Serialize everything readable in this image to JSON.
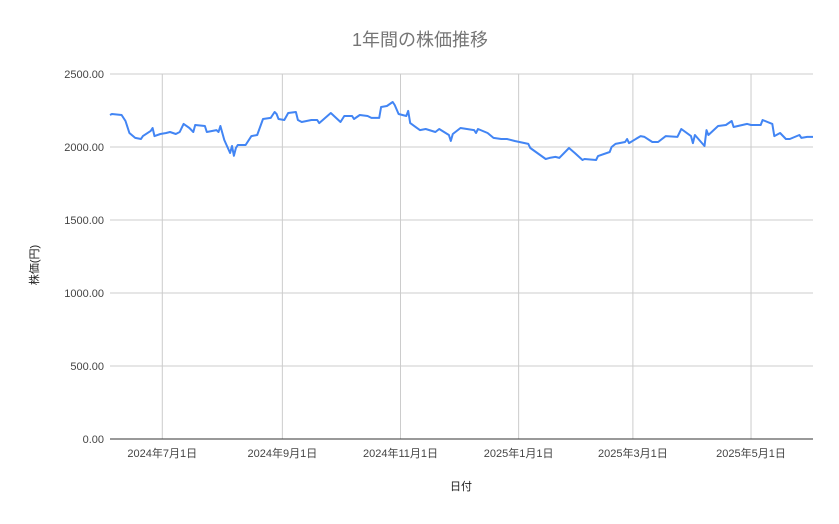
{
  "chart_data": {
    "type": "line",
    "title": "1年間の株価推移",
    "xlabel": "日付",
    "ylabel": "株価(円)",
    "xlim": [
      "2024-06-04",
      "2025-06-02"
    ],
    "ylim": [
      0,
      2500
    ],
    "grid": true,
    "line_color": "#4285f4",
    "y_ticks": [
      {
        "value": 0,
        "label": "0.00"
      },
      {
        "value": 500,
        "label": "500.00"
      },
      {
        "value": 1000,
        "label": "1000.00"
      },
      {
        "value": 1500,
        "label": "1500.00"
      },
      {
        "value": 2000,
        "label": "2000.00"
      },
      {
        "value": 2500,
        "label": "2500.00"
      }
    ],
    "x_ticks": [
      {
        "value": "2024-07-01",
        "label": "2024年7月1日"
      },
      {
        "value": "2024-09-01",
        "label": "2024年9月1日"
      },
      {
        "value": "2024-11-01",
        "label": "2024年11月1日"
      },
      {
        "value": "2025-01-01",
        "label": "2025年1月1日"
      },
      {
        "value": "2025-03-01",
        "label": "2025年3月1日"
      },
      {
        "value": "2025-05-01",
        "label": "2025年5月1日"
      }
    ],
    "series": [
      {
        "points": [
          [
            "2024-06-04",
            2219
          ],
          [
            "2024-06-05",
            2226
          ],
          [
            "2024-06-10",
            2219
          ],
          [
            "2024-06-12",
            2178
          ],
          [
            "2024-06-14",
            2096
          ],
          [
            "2024-06-17",
            2062
          ],
          [
            "2024-06-20",
            2055
          ],
          [
            "2024-06-21",
            2075
          ],
          [
            "2024-06-25",
            2110
          ],
          [
            "2024-06-26",
            2130
          ],
          [
            "2024-06-27",
            2075
          ],
          [
            "2024-06-30",
            2089
          ],
          [
            "2024-07-03",
            2096
          ],
          [
            "2024-07-05",
            2103
          ],
          [
            "2024-07-08",
            2089
          ],
          [
            "2024-07-10",
            2103
          ],
          [
            "2024-07-12",
            2158
          ],
          [
            "2024-07-15",
            2130
          ],
          [
            "2024-07-17",
            2103
          ],
          [
            "2024-07-18",
            2151
          ],
          [
            "2024-07-23",
            2144
          ],
          [
            "2024-07-24",
            2103
          ],
          [
            "2024-07-29",
            2116
          ],
          [
            "2024-07-30",
            2103
          ],
          [
            "2024-07-31",
            2144
          ],
          [
            "2024-08-02",
            2048
          ],
          [
            "2024-08-05",
            1959
          ],
          [
            "2024-08-06",
            2007
          ],
          [
            "2024-08-07",
            1940
          ],
          [
            "2024-08-08",
            1993
          ],
          [
            "2024-08-09",
            2014
          ],
          [
            "2024-08-13",
            2014
          ],
          [
            "2024-08-16",
            2075
          ],
          [
            "2024-08-19",
            2082
          ],
          [
            "2024-08-22",
            2192
          ],
          [
            "2024-08-26",
            2199
          ],
          [
            "2024-08-28",
            2240
          ],
          [
            "2024-08-29",
            2226
          ],
          [
            "2024-08-30",
            2192
          ],
          [
            "2024-09-02",
            2185
          ],
          [
            "2024-09-04",
            2233
          ],
          [
            "2024-09-08",
            2240
          ],
          [
            "2024-09-09",
            2185
          ],
          [
            "2024-09-11",
            2171
          ],
          [
            "2024-09-16",
            2185
          ],
          [
            "2024-09-19",
            2185
          ],
          [
            "2024-09-20",
            2164
          ],
          [
            "2024-09-26",
            2233
          ],
          [
            "2024-10-01",
            2171
          ],
          [
            "2024-10-03",
            2212
          ],
          [
            "2024-10-07",
            2212
          ],
          [
            "2024-10-08",
            2192
          ],
          [
            "2024-10-11",
            2219
          ],
          [
            "2024-10-15",
            2212
          ],
          [
            "2024-10-17",
            2199
          ],
          [
            "2024-10-21",
            2199
          ],
          [
            "2024-10-22",
            2274
          ],
          [
            "2024-10-25",
            2281
          ],
          [
            "2024-10-28",
            2308
          ],
          [
            "2024-10-29",
            2288
          ],
          [
            "2024-10-31",
            2226
          ],
          [
            "2024-11-04",
            2212
          ],
          [
            "2024-11-05",
            2247
          ],
          [
            "2024-11-06",
            2164
          ],
          [
            "2024-11-11",
            2116
          ],
          [
            "2024-11-14",
            2123
          ],
          [
            "2024-11-19",
            2103
          ],
          [
            "2024-11-21",
            2123
          ],
          [
            "2024-11-26",
            2082
          ],
          [
            "2024-11-27",
            2041
          ],
          [
            "2024-11-28",
            2089
          ],
          [
            "2024-12-02",
            2130
          ],
          [
            "2024-12-09",
            2116
          ],
          [
            "2024-12-10",
            2096
          ],
          [
            "2024-12-11",
            2123
          ],
          [
            "2024-12-16",
            2096
          ],
          [
            "2024-12-19",
            2062
          ],
          [
            "2024-12-23",
            2055
          ],
          [
            "2024-12-26",
            2055
          ],
          [
            "2024-12-30",
            2041
          ],
          [
            "2025-01-06",
            2021
          ],
          [
            "2025-01-07",
            1993
          ],
          [
            "2025-01-15",
            1918
          ],
          [
            "2025-01-17",
            1925
          ],
          [
            "2025-01-20",
            1932
          ],
          [
            "2025-01-22",
            1925
          ],
          [
            "2025-01-27",
            1993
          ],
          [
            "2025-01-30",
            1959
          ],
          [
            "2025-02-03",
            1911
          ],
          [
            "2025-02-04",
            1918
          ],
          [
            "2025-02-10",
            1911
          ],
          [
            "2025-02-11",
            1938
          ],
          [
            "2025-02-17",
            1966
          ],
          [
            "2025-02-18",
            2000
          ],
          [
            "2025-02-20",
            2021
          ],
          [
            "2025-02-25",
            2034
          ],
          [
            "2025-02-26",
            2055
          ],
          [
            "2025-02-27",
            2027
          ],
          [
            "2025-03-05",
            2075
          ],
          [
            "2025-03-07",
            2069
          ],
          [
            "2025-03-11",
            2034
          ],
          [
            "2025-03-14",
            2034
          ],
          [
            "2025-03-18",
            2075
          ],
          [
            "2025-03-24",
            2069
          ],
          [
            "2025-03-26",
            2123
          ],
          [
            "2025-03-31",
            2075
          ],
          [
            "2025-04-01",
            2027
          ],
          [
            "2025-04-02",
            2082
          ],
          [
            "2025-04-07",
            2007
          ],
          [
            "2025-04-08",
            2116
          ],
          [
            "2025-04-09",
            2082
          ],
          [
            "2025-04-14",
            2144
          ],
          [
            "2025-04-18",
            2151
          ],
          [
            "2025-04-21",
            2178
          ],
          [
            "2025-04-22",
            2137
          ],
          [
            "2025-04-29",
            2158
          ],
          [
            "2025-05-01",
            2151
          ],
          [
            "2025-05-06",
            2151
          ],
          [
            "2025-05-07",
            2185
          ],
          [
            "2025-05-12",
            2158
          ],
          [
            "2025-05-13",
            2075
          ],
          [
            "2025-05-16",
            2096
          ],
          [
            "2025-05-19",
            2055
          ],
          [
            "2025-05-21",
            2055
          ],
          [
            "2025-05-26",
            2082
          ],
          [
            "2025-05-27",
            2062
          ],
          [
            "2025-05-30",
            2069
          ],
          [
            "2025-06-02",
            2069
          ]
        ]
      }
    ]
  }
}
